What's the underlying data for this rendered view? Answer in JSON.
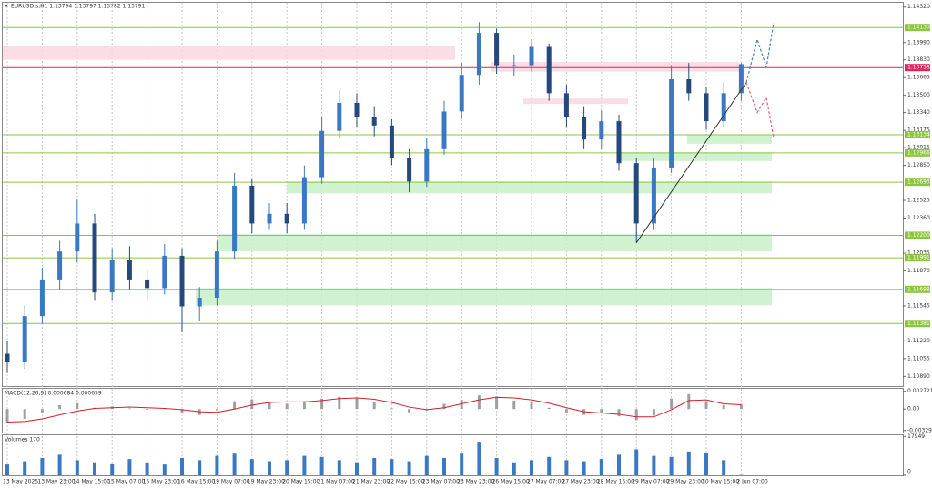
{
  "chart_data": [
    {
      "type": "candlestick",
      "title": "EURUSD.s,H1  1.13794 1.13797 1.13782 1.13791",
      "categories": [
        "13 May 2025",
        null,
        "13 May 23:00",
        null,
        "14 May 15:00",
        null,
        "15 May 07:00",
        null,
        "15 May 23:00",
        null,
        "16 May 15:00",
        null,
        "19 May 07:00",
        null,
        "19 May 23:00",
        null,
        "20 May 15:00",
        null,
        "21 May 07:00",
        null,
        "21 May 23:00",
        null,
        "22 May 15:00",
        null,
        "23 May 07:00",
        null,
        "23 May 23:00",
        null,
        "26 May 15:00",
        null,
        "27 May 07:00",
        null,
        "27 May 23:00",
        null,
        "28 May 15:00",
        null,
        "29 May 07:00",
        null,
        "29 May 23:00",
        null,
        "30 May 15:00",
        null,
        "2 Jun 07:00"
      ],
      "open": [
        1.111,
        1.1102,
        1.1145,
        1.1179,
        1.1205,
        1.1231,
        1.1167,
        1.1197,
        1.1179,
        1.1171,
        1.1201,
        1.1154,
        1.1162,
        1.1205,
        1.1266,
        1.1231,
        1.124,
        1.1231,
        1.1274,
        1.1317,
        1.1343,
        1.133,
        1.1322,
        1.1292,
        1.127,
        1.13,
        1.1335,
        1.1369,
        1.1408,
        1.1378,
        1.1378,
        1.1395,
        1.1352,
        1.133,
        1.1309,
        1.1326,
        1.1287,
        1.1231,
        1.1283,
        1.1365,
        1.1352,
        1.1326,
        1.1352
      ],
      "high": [
        1.1122,
        1.1155,
        1.119,
        1.1215,
        1.1253,
        1.124,
        1.1208,
        1.121,
        1.1188,
        1.1212,
        1.1208,
        1.1172,
        1.1215,
        1.1278,
        1.1272,
        1.125,
        1.125,
        1.1285,
        1.133,
        1.1355,
        1.1352,
        1.134,
        1.1328,
        1.13,
        1.131,
        1.1345,
        1.138,
        1.1418,
        1.1412,
        1.1388,
        1.1402,
        1.1398,
        1.136,
        1.134,
        1.1336,
        1.1332,
        1.1292,
        1.1292,
        1.1378,
        1.138,
        1.1358,
        1.1362,
        1.138
      ],
      "low": [
        1.1092,
        1.1096,
        1.1138,
        1.117,
        1.1195,
        1.116,
        1.116,
        1.117,
        1.116,
        1.1165,
        1.113,
        1.114,
        1.1155,
        1.1198,
        1.1222,
        1.1225,
        1.1222,
        1.1225,
        1.1268,
        1.131,
        1.132,
        1.1312,
        1.1285,
        1.126,
        1.1265,
        1.1295,
        1.1328,
        1.136,
        1.137,
        1.1368,
        1.1372,
        1.1345,
        1.132,
        1.13,
        1.13,
        1.128,
        1.1213,
        1.1225,
        1.1278,
        1.1345,
        1.1318,
        1.132,
        1.1345
      ],
      "close": [
        1.1102,
        1.1145,
        1.1179,
        1.1205,
        1.1231,
        1.1167,
        1.1197,
        1.1179,
        1.1171,
        1.1201,
        1.1154,
        1.1162,
        1.1205,
        1.1266,
        1.1231,
        1.124,
        1.1231,
        1.1274,
        1.1317,
        1.1343,
        1.133,
        1.1322,
        1.1292,
        1.127,
        1.13,
        1.1335,
        1.1369,
        1.1408,
        1.1378,
        1.1378,
        1.1395,
        1.1352,
        1.133,
        1.1309,
        1.1326,
        1.1287,
        1.1231,
        1.1283,
        1.1365,
        1.1352,
        1.1326,
        1.1352,
        1.1379
      ],
      "up_color": "#3b78c3",
      "down_color": "#24497c",
      "ylim": [
        1.108,
        1.1436
      ],
      "yticks": [
        {
          "value": 1.1432,
          "label": "1.14320"
        },
        {
          "value": 1.1399,
          "label": "1.13990"
        },
        {
          "value": 1.1383,
          "label": "1.13830"
        },
        1.13665,
        {
          "value": 1.135,
          "label": "1.13500"
        },
        {
          "value": 1.1334,
          "label": "1.13340"
        },
        1.13175,
        1.13015,
        {
          "value": 1.1285,
          "label": "1.12850"
        },
        1.12525,
        {
          "value": 1.1236,
          "label": "1.12360"
        },
        1.12035,
        {
          "value": 1.1187,
          "label": "1.11870"
        },
        1.11545,
        {
          "value": 1.1122,
          "label": "1.11220"
        },
        1.11055,
        {
          "value": 1.1089,
          "label": "1.10890"
        }
      ],
      "levels": [
        {
          "value": 1.1413,
          "label": "1.14130",
          "color": "#8cc63f"
        },
        {
          "value": 1.13758,
          "label": "1.13758",
          "color": "#e0245e"
        },
        {
          "value": 1.13134,
          "label": "1.13134",
          "color": "#8cc63f"
        },
        {
          "value": 1.12966,
          "label": "1.12966",
          "color": "#8cc63f"
        },
        {
          "value": 1.12693,
          "label": "1.12693",
          "color": "#8cc63f"
        },
        {
          "value": 1.122,
          "label": "1.12200",
          "color": "#8cc63f"
        },
        {
          "value": 1.11991,
          "label": "1.11991",
          "color": "#8cc63f"
        },
        {
          "value": 1.11698,
          "label": "1.11698",
          "color": "#8cc63f"
        },
        {
          "value": 1.11381,
          "label": "1.11381",
          "color": "#8cc63f"
        }
      ],
      "zones": [
        {
          "low": 1.1383,
          "high": 1.1396,
          "color": "#fad7e0"
        },
        {
          "low": 1.1372,
          "high": 1.1381,
          "color": "#fad7e0"
        },
        {
          "low": 1.1342,
          "high": 1.1347,
          "color": "#fad7e0"
        },
        {
          "low": 1.1305,
          "high": 1.1313,
          "color": "#c8f0c8"
        },
        {
          "low": 1.1289,
          "high": 1.1297,
          "color": "#c8f0c8"
        },
        {
          "low": 1.1259,
          "high": 1.127,
          "color": "#c8f0c8"
        },
        {
          "low": 1.1205,
          "high": 1.1221,
          "color": "#c8f0c8"
        },
        {
          "low": 1.1155,
          "high": 1.1171,
          "color": "#c8f0c8"
        }
      ],
      "trendline": [
        1.1213,
        1.1362
      ],
      "forecasts": [
        {
          "color": "#4a7fc0",
          "values": [
            1.1362,
            1.1402,
            1.1376,
            1.1417
          ]
        },
        {
          "color": "#e0607a",
          "values": [
            1.1362,
            1.1334,
            1.1348,
            1.1311
          ]
        }
      ]
    },
    {
      "type": "macd",
      "title": "MACD(12,26,9) 0.000684 0.000659",
      "series": [
        {
          "name": "histogram",
          "color": "#a0a0a0",
          "values": [
            -0.0022,
            -0.0015,
            -0.0005,
            0.0006,
            0.0009,
            0.0002,
            0.0004,
            0.0001,
            -0.0001,
            0.0001,
            -0.0006,
            -0.0009,
            -0.0002,
            0.0012,
            0.0015,
            0.0011,
            0.0008,
            0.0012,
            0.0016,
            0.0019,
            0.0017,
            0.001,
            0.0001,
            -0.0005,
            -0.0002,
            0.0008,
            0.0014,
            0.0021,
            0.0019,
            0.0013,
            0.0011,
            0.0002,
            -0.0005,
            -0.0009,
            -0.0006,
            -0.0011,
            -0.0017,
            -0.001,
            0.0016,
            0.0023,
            0.0012,
            0.0006,
            0.000684
          ]
        },
        {
          "name": "signal",
          "color": "#d0202a",
          "values": [
            -0.002,
            -0.0019,
            -0.0015,
            -0.0009,
            -0.0003,
            0.0001,
            0.0002,
            0.0003,
            0.0002,
            0.0001,
            -0.0001,
            -0.0004,
            -0.0005,
            0,
            0.0006,
            0.001,
            0.0011,
            0.0011,
            0.0013,
            0.0016,
            0.0017,
            0.0015,
            0.001,
            0.0003,
            -0.0001,
            0.0002,
            0.0008,
            0.0014,
            0.0018,
            0.0017,
            0.0014,
            0.0009,
            0.0002,
            -0.0004,
            -0.0006,
            -0.0008,
            -0.0012,
            -0.0012,
            -0.0001,
            0.0013,
            0.0014,
            0.0008,
            0.000659
          ]
        }
      ],
      "ylim": [
        -0.0036,
        0.0031
      ],
      "yticks": [
        0.002721,
        {
          "value": 0,
          "label": "0.00"
        },
        -0.003291
      ]
    },
    {
      "type": "volume",
      "title": "Volumes 170",
      "color": "#3b78c3",
      "values": [
        5000,
        6500,
        8000,
        9500,
        7000,
        6000,
        5500,
        7500,
        6000,
        5000,
        8000,
        7000,
        9000,
        10000,
        7500,
        6500,
        7000,
        9000,
        8500,
        7000,
        6000,
        8000,
        7500,
        6500,
        9000,
        8000,
        10000,
        15500,
        8000,
        6000,
        7000,
        8500,
        7000,
        6500,
        7500,
        9500,
        12000,
        9000,
        8500,
        11000,
        10500,
        7000,
        170
      ],
      "ylim": [
        0,
        18500
      ],
      "yticks": [
        17949,
        0
      ]
    }
  ]
}
